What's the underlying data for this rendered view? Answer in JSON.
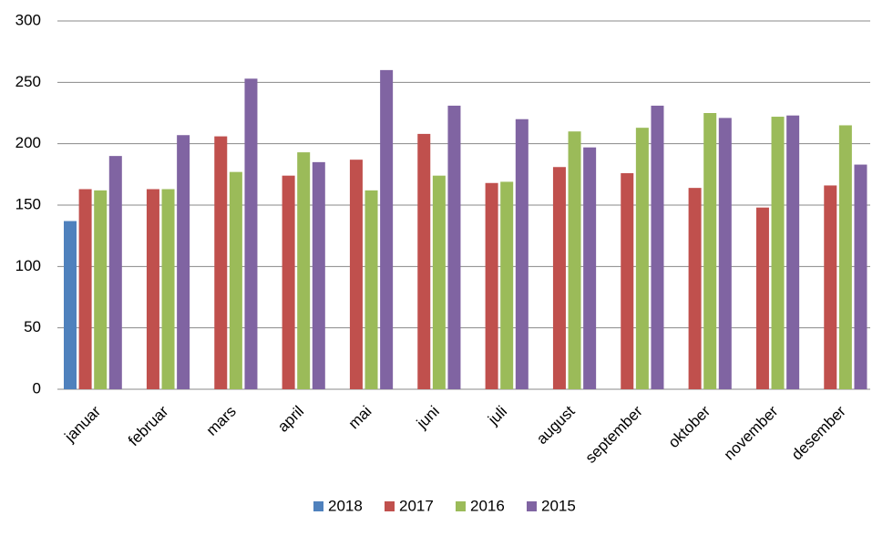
{
  "chart_data": {
    "type": "bar",
    "categories": [
      "januar",
      "februar",
      "mars",
      "april",
      "mai",
      "juni",
      "juli",
      "august",
      "september",
      "oktober",
      "november",
      "desember"
    ],
    "series": [
      {
        "name": "2018",
        "color": "#4f81bd",
        "values": [
          137,
          null,
          null,
          null,
          null,
          null,
          null,
          null,
          null,
          null,
          null,
          null
        ]
      },
      {
        "name": "2017",
        "color": "#c0504d",
        "values": [
          163,
          163,
          206,
          174,
          187,
          208,
          168,
          181,
          176,
          164,
          148,
          166
        ]
      },
      {
        "name": "2016",
        "color": "#9bbb59",
        "values": [
          162,
          163,
          177,
          193,
          162,
          174,
          169,
          210,
          213,
          225,
          222,
          215
        ]
      },
      {
        "name": "2015",
        "color": "#8064a2",
        "values": [
          190,
          207,
          253,
          185,
          260,
          231,
          220,
          197,
          231,
          221,
          223,
          183
        ]
      }
    ],
    "ylim": [
      0,
      300
    ],
    "yticks": [
      0,
      50,
      100,
      150,
      200,
      250,
      300
    ],
    "grid": true,
    "legend": "bottom"
  }
}
